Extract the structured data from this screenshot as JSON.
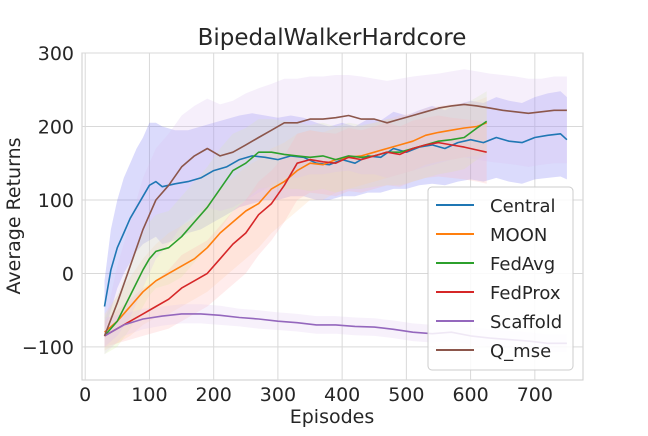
{
  "chart_data": {
    "type": "line",
    "title": "BipedalWalkerHardcore",
    "xlabel": "Episodes",
    "ylabel": "Average Returns",
    "xlim": [
      -5,
      775
    ],
    "ylim": [
      -145,
      300
    ],
    "xticks": [
      0,
      100,
      200,
      300,
      400,
      500,
      600,
      700
    ],
    "yticks": [
      -100,
      0,
      100,
      200,
      300
    ],
    "grid": true,
    "legend_position": "lower-right",
    "series": [
      {
        "name": "Central",
        "color": "#1f77b4",
        "band_color": "#6f6ff5",
        "x": [
          30,
          40,
          50,
          60,
          70,
          80,
          90,
          100,
          110,
          120,
          140,
          160,
          180,
          200,
          220,
          240,
          260,
          280,
          300,
          320,
          340,
          360,
          380,
          400,
          420,
          440,
          460,
          480,
          500,
          520,
          540,
          560,
          580,
          600,
          620,
          640,
          660,
          680,
          700,
          720,
          740,
          750
        ],
        "y": [
          -45,
          5,
          35,
          55,
          75,
          90,
          105,
          120,
          125,
          118,
          122,
          125,
          130,
          140,
          145,
          155,
          160,
          158,
          155,
          160,
          158,
          150,
          148,
          155,
          150,
          160,
          158,
          170,
          165,
          172,
          175,
          170,
          178,
          182,
          178,
          185,
          180,
          178,
          185,
          188,
          190,
          182
        ],
        "lower": [
          -80,
          -50,
          -20,
          0,
          15,
          30,
          40,
          45,
          50,
          40,
          45,
          55,
          60,
          70,
          80,
          90,
          95,
          100,
          100,
          105,
          105,
          100,
          100,
          105,
          105,
          110,
          110,
          115,
          115,
          120,
          122,
          120,
          125,
          128,
          125,
          130,
          125,
          122,
          128,
          130,
          132,
          128
        ],
        "upper": [
          -10,
          60,
          100,
          130,
          150,
          170,
          185,
          205,
          205,
          200,
          195,
          195,
          200,
          205,
          210,
          215,
          218,
          215,
          212,
          215,
          212,
          205,
          200,
          205,
          200,
          210,
          208,
          220,
          215,
          222,
          228,
          222,
          230,
          235,
          232,
          240,
          235,
          232,
          240,
          245,
          248,
          240
        ]
      },
      {
        "name": "MOON",
        "color": "#ff7f0e",
        "band_color": "#ffd2a6",
        "x": [
          30,
          50,
          70,
          90,
          110,
          130,
          150,
          170,
          190,
          210,
          230,
          250,
          270,
          290,
          310,
          330,
          350,
          370,
          390,
          410,
          430,
          450,
          470,
          490,
          510,
          530,
          550,
          570,
          590,
          610,
          625
        ],
        "y": [
          -80,
          -65,
          -45,
          -25,
          -10,
          0,
          10,
          20,
          35,
          55,
          70,
          85,
          95,
          115,
          125,
          140,
          150,
          148,
          155,
          158,
          160,
          165,
          170,
          175,
          180,
          188,
          192,
          195,
          198,
          200,
          205
        ],
        "lower": [
          -105,
          -95,
          -85,
          -70,
          -60,
          -55,
          -45,
          -35,
          -25,
          -10,
          5,
          20,
          35,
          55,
          70,
          85,
          100,
          100,
          110,
          115,
          120,
          125,
          130,
          135,
          140,
          148,
          152,
          155,
          158,
          160,
          165
        ],
        "upper": [
          -55,
          -30,
          -5,
          20,
          40,
          55,
          65,
          75,
          95,
          115,
          130,
          145,
          155,
          170,
          178,
          190,
          195,
          192,
          198,
          200,
          200,
          205,
          210,
          215,
          218,
          225,
          228,
          230,
          232,
          235,
          240
        ]
      },
      {
        "name": "FedAvg",
        "color": "#2ca02c",
        "band_color": "#d9f2a3",
        "x": [
          30,
          50,
          70,
          90,
          100,
          110,
          130,
          150,
          170,
          190,
          210,
          230,
          250,
          270,
          290,
          310,
          330,
          350,
          370,
          390,
          410,
          430,
          450,
          470,
          490,
          510,
          530,
          550,
          570,
          590,
          610,
          625
        ],
        "y": [
          -85,
          -65,
          -30,
          5,
          20,
          30,
          35,
          50,
          70,
          90,
          115,
          140,
          150,
          165,
          165,
          162,
          160,
          158,
          160,
          155,
          160,
          158,
          160,
          165,
          165,
          170,
          175,
          180,
          182,
          185,
          198,
          207
        ],
        "lower": [
          -110,
          -100,
          -75,
          -45,
          -30,
          -20,
          -15,
          -5,
          15,
          35,
          60,
          85,
          100,
          115,
          118,
          115,
          115,
          112,
          115,
          110,
          115,
          115,
          118,
          120,
          120,
          125,
          130,
          135,
          138,
          142,
          155,
          162
        ],
        "upper": [
          -60,
          -30,
          15,
          55,
          70,
          80,
          85,
          105,
          125,
          145,
          170,
          190,
          198,
          210,
          210,
          208,
          205,
          202,
          205,
          200,
          205,
          202,
          205,
          210,
          210,
          215,
          220,
          225,
          228,
          230,
          240,
          248
        ]
      },
      {
        "name": "FedProx",
        "color": "#d62728",
        "band_color": "#ffb3b3",
        "x": [
          30,
          50,
          70,
          90,
          110,
          130,
          150,
          170,
          190,
          210,
          230,
          250,
          270,
          290,
          310,
          330,
          350,
          370,
          390,
          410,
          430,
          450,
          470,
          490,
          510,
          530,
          550,
          570,
          590,
          610,
          625
        ],
        "y": [
          -85,
          -75,
          -65,
          -55,
          -45,
          -35,
          -20,
          -10,
          0,
          20,
          40,
          55,
          80,
          95,
          120,
          150,
          155,
          152,
          150,
          158,
          155,
          160,
          165,
          162,
          170,
          175,
          178,
          175,
          172,
          168,
          165
        ],
        "lower": [
          -100,
          -95,
          -90,
          -85,
          -80,
          -75,
          -65,
          -55,
          -45,
          -30,
          -15,
          0,
          25,
          45,
          70,
          100,
          110,
          108,
          105,
          112,
          110,
          115,
          120,
          118,
          125,
          130,
          132,
          130,
          128,
          125,
          122
        ],
        "upper": [
          -65,
          -50,
          -35,
          -20,
          -10,
          5,
          25,
          35,
          45,
          65,
          85,
          100,
          125,
          140,
          160,
          190,
          195,
          192,
          190,
          198,
          195,
          200,
          205,
          200,
          208,
          212,
          215,
          212,
          210,
          208,
          205
        ]
      },
      {
        "name": "Scaffold",
        "color": "#9467bd",
        "band_color": "#e0c8f0",
        "x": [
          30,
          60,
          90,
          120,
          150,
          180,
          210,
          240,
          270,
          300,
          330,
          360,
          390,
          420,
          450,
          480,
          510,
          540,
          570,
          600,
          630,
          660,
          690,
          720,
          750
        ],
        "y": [
          -85,
          -70,
          -62,
          -58,
          -55,
          -55,
          -57,
          -60,
          -62,
          -65,
          -67,
          -70,
          -70,
          -72,
          -73,
          -76,
          -80,
          -82,
          -80,
          -85,
          -88,
          -90,
          -92,
          -95,
          -95
        ],
        "lower": [
          -110,
          -85,
          -76,
          -71,
          -68,
          -68,
          -70,
          -72,
          -75,
          -77,
          -79,
          -82,
          -82,
          -84,
          -85,
          -88,
          -92,
          -94,
          -92,
          -97,
          -100,
          -102,
          -104,
          -107,
          -107
        ],
        "upper": [
          -60,
          -55,
          -48,
          -45,
          -42,
          -42,
          -44,
          -48,
          -50,
          -53,
          -55,
          -58,
          -58,
          -60,
          -61,
          -64,
          -68,
          -70,
          -68,
          -73,
          -76,
          -78,
          -80,
          -83,
          -83
        ]
      },
      {
        "name": "Q_mse",
        "color": "#8c564b",
        "band_color": "#dcc0f0",
        "x": [
          30,
          50,
          70,
          90,
          110,
          130,
          150,
          170,
          190,
          210,
          230,
          250,
          270,
          290,
          310,
          330,
          350,
          370,
          390,
          410,
          430,
          450,
          470,
          490,
          510,
          530,
          550,
          570,
          590,
          610,
          630,
          650,
          670,
          690,
          710,
          730,
          750
        ],
        "y": [
          -85,
          -40,
          10,
          60,
          100,
          120,
          145,
          160,
          170,
          160,
          165,
          175,
          185,
          195,
          205,
          205,
          210,
          210,
          212,
          215,
          210,
          210,
          205,
          210,
          215,
          220,
          225,
          228,
          230,
          228,
          225,
          222,
          220,
          218,
          220,
          222,
          222
        ],
        "lower": [
          -100,
          -85,
          -60,
          -20,
          20,
          40,
          65,
          80,
          90,
          85,
          90,
          100,
          110,
          120,
          130,
          130,
          135,
          135,
          138,
          140,
          135,
          135,
          130,
          135,
          140,
          145,
          150,
          155,
          158,
          155,
          152,
          150,
          148,
          145,
          148,
          150,
          150
        ],
        "upper": [
          -70,
          10,
          70,
          130,
          170,
          190,
          215,
          228,
          238,
          230,
          235,
          245,
          252,
          258,
          265,
          265,
          268,
          268,
          270,
          270,
          268,
          265,
          262,
          265,
          268,
          270,
          272,
          275,
          278,
          275,
          272,
          270,
          268,
          265,
          265,
          268,
          268
        ]
      }
    ]
  }
}
